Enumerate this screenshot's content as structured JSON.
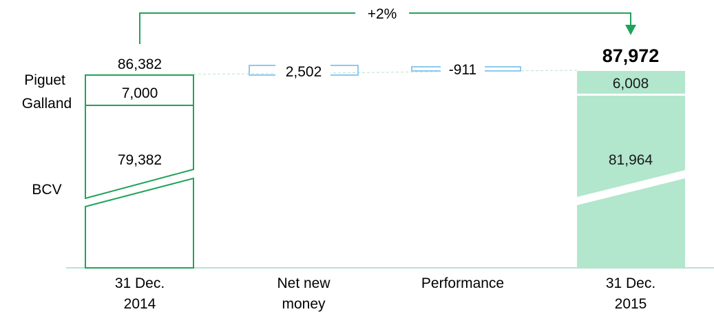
{
  "chart_data": {
    "type": "bar",
    "categories": [
      [
        "31 Dec.",
        "2014"
      ],
      [
        "Net new",
        "money"
      ],
      [
        "Performance"
      ],
      [
        "31 Dec.",
        "2015"
      ]
    ],
    "series": [
      {
        "name": "BCV",
        "values": [
          79382,
          null,
          null,
          81964
        ]
      },
      {
        "name": "Piguet Galland",
        "values": [
          7000,
          null,
          null,
          6008
        ]
      },
      {
        "name": "",
        "values": [
          null,
          2502,
          -911,
          null
        ]
      }
    ],
    "totals": [
      86382,
      null,
      null,
      87972
    ],
    "labels": {
      "total_2014": "86,382",
      "total_2015": "87,972",
      "pg_2014": "7,000",
      "bcv_2014": "79,382",
      "pg_2015": "6,008",
      "bcv_2015": "81,964",
      "net_new_money": "2,502",
      "performance": "-911"
    },
    "legend_labels": {
      "piguet_galland": [
        "Piguet",
        "Galland"
      ],
      "bcv": "BCV"
    },
    "growth_annotation": "+2%",
    "axis_broken": true,
    "colors": {
      "outline": "#1fa35a",
      "fill_2015": "#b2e6cd",
      "delta_outline": "#8ec9ee",
      "baseline": "#b7e4cd",
      "connector": "#b7e4cd",
      "text": "#000000",
      "text_2015": "#1a1a1a"
    }
  }
}
